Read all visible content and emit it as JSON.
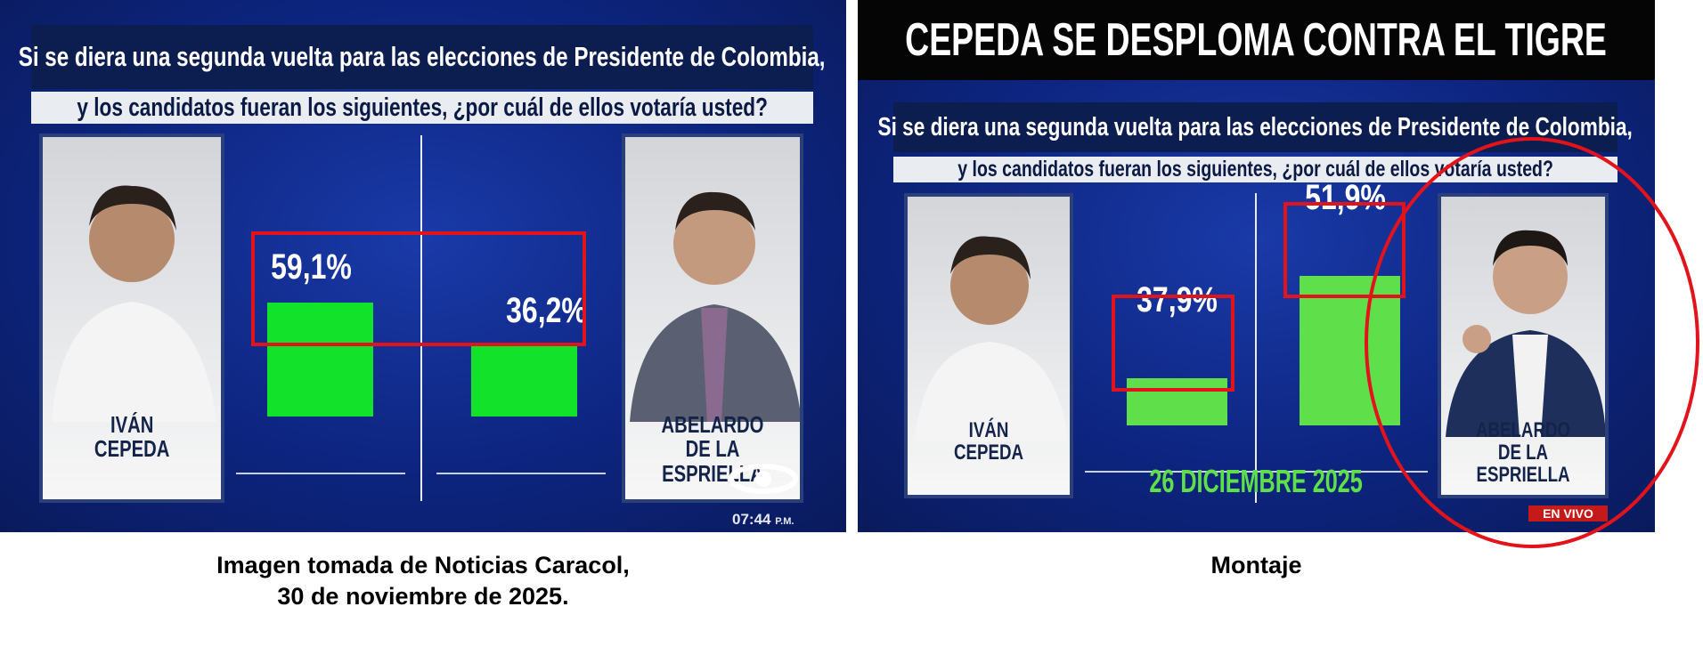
{
  "left": {
    "question_line1": "Si se diera una segunda vuelta para las elecciones de Presidente de Colombia,",
    "question_line2": "y los candidatos fueran los siguientes, ¿por cuál de ellos votaría usted?",
    "candidate1": [
      "IVÁN",
      "CEPEDA"
    ],
    "candidate2": [
      "ABELARDO",
      "DE LA ESPRIELLA"
    ],
    "time": "07:44",
    "time_suffix": "P.M.",
    "logo": "caracol-logo",
    "caption_line1": "Imagen tomada de Noticias Caracol,",
    "caption_line2": "30 de noviembre de 2025."
  },
  "right": {
    "headline": "CEPEDA SE DESPLOMA CONTRA EL TIGRE",
    "question_line1": "Si se diera una segunda vuelta para las elecciones de Presidente de Colombia,",
    "question_line2": "y los candidatos fueran los siguientes, ¿por cuál de ellos votaría usted?",
    "candidate1": [
      "IVÁN",
      "CEPEDA"
    ],
    "candidate2": [
      "ABELARDO",
      "DE LA ESPRIELLA"
    ],
    "date": "26 DICIEMBRE 2025",
    "live_badge": "EN VIVO",
    "caption": "Montaje"
  },
  "colors": {
    "bar": "#12e22a",
    "bar_montage": "#5fe04a",
    "highlight": "#e3131b",
    "background": "#0d2580",
    "date": "#5fe04a"
  },
  "chart_data": [
    {
      "type": "bar",
      "categories": [
        "IVÁN CEPEDA",
        "ABELARDO DE LA ESPRIELLA"
      ],
      "values": [
        59.1,
        36.2
      ],
      "labels": [
        "59,1%",
        "36,2%"
      ]
    },
    {
      "type": "bar",
      "categories": [
        "IVÁN CEPEDA",
        "ABELARDO DE LA ESPRIELLA"
      ],
      "values": [
        37.9,
        51.9
      ],
      "labels": [
        "37,9%",
        "51,9%"
      ]
    }
  ]
}
